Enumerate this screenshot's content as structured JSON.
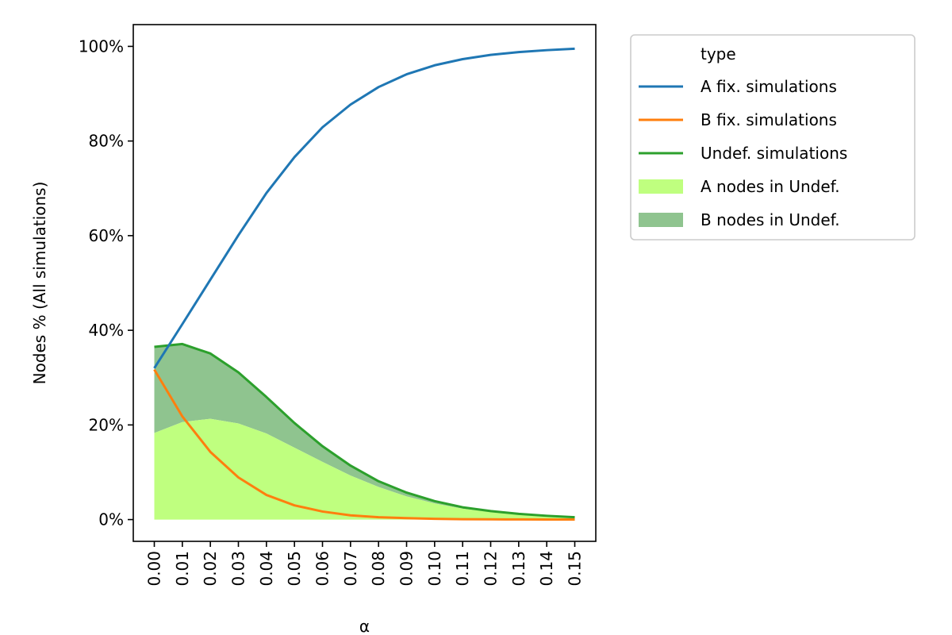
{
  "chart_data": {
    "type": "line",
    "xlabel": "α",
    "ylabel": "Nodes % (All simulations)",
    "x": [
      0.0,
      0.01,
      0.02,
      0.03,
      0.04,
      0.05,
      0.06,
      0.07,
      0.08,
      0.09,
      0.1,
      0.11,
      0.12,
      0.13,
      0.14,
      0.15
    ],
    "x_tick_labels": [
      "0.00",
      "0.01",
      "0.02",
      "0.03",
      "0.04",
      "0.05",
      "0.06",
      "0.07",
      "0.08",
      "0.09",
      "0.10",
      "0.11",
      "0.12",
      "0.13",
      "0.14",
      "0.15"
    ],
    "xlim": [
      -0.0075,
      0.1575
    ],
    "ylim": [
      -4.6,
      104.6
    ],
    "y_ticks": [
      0,
      20,
      40,
      60,
      80,
      100
    ],
    "y_tick_labels": [
      "0%",
      "20%",
      "40%",
      "60%",
      "80%",
      "100%"
    ],
    "grid": false,
    "legend": {
      "title": "type",
      "placement": "outside-top-right"
    },
    "series": [
      {
        "name": "A fix. simulations",
        "kind": "line",
        "color": "#1f77b4",
        "values": [
          32.0,
          41.3,
          50.7,
          60.1,
          69.0,
          76.6,
          82.9,
          87.7,
          91.4,
          94.1,
          96.0,
          97.3,
          98.2,
          98.8,
          99.2,
          99.5
        ]
      },
      {
        "name": "B fix. simulations",
        "kind": "line",
        "color": "#ff7f0e",
        "values": [
          31.7,
          21.8,
          14.3,
          8.9,
          5.2,
          3.0,
          1.7,
          0.9,
          0.5,
          0.3,
          0.15,
          0.08,
          0.05,
          0.03,
          0.02,
          0.01
        ]
      },
      {
        "name": "Undef. simulations",
        "kind": "line",
        "color": "#2ca02c",
        "values": [
          36.5,
          37.1,
          35.1,
          31.1,
          25.9,
          20.4,
          15.5,
          11.4,
          8.1,
          5.7,
          3.9,
          2.6,
          1.8,
          1.2,
          0.8,
          0.5
        ]
      },
      {
        "name": "A nodes in Undef.",
        "kind": "area",
        "color": "#bfff7f",
        "values": [
          18.3,
          20.6,
          21.3,
          20.3,
          18.2,
          15.2,
          12.2,
          9.3,
          6.9,
          4.9,
          3.4,
          2.3,
          1.6,
          1.1,
          0.7,
          0.45
        ]
      },
      {
        "name": "B nodes in Undef.",
        "kind": "area",
        "color": "#8fc48f",
        "values": [
          18.2,
          16.5,
          13.8,
          10.8,
          7.7,
          5.2,
          3.3,
          2.1,
          1.2,
          0.8,
          0.5,
          0.3,
          0.2,
          0.1,
          0.1,
          0.05
        ]
      }
    ]
  }
}
